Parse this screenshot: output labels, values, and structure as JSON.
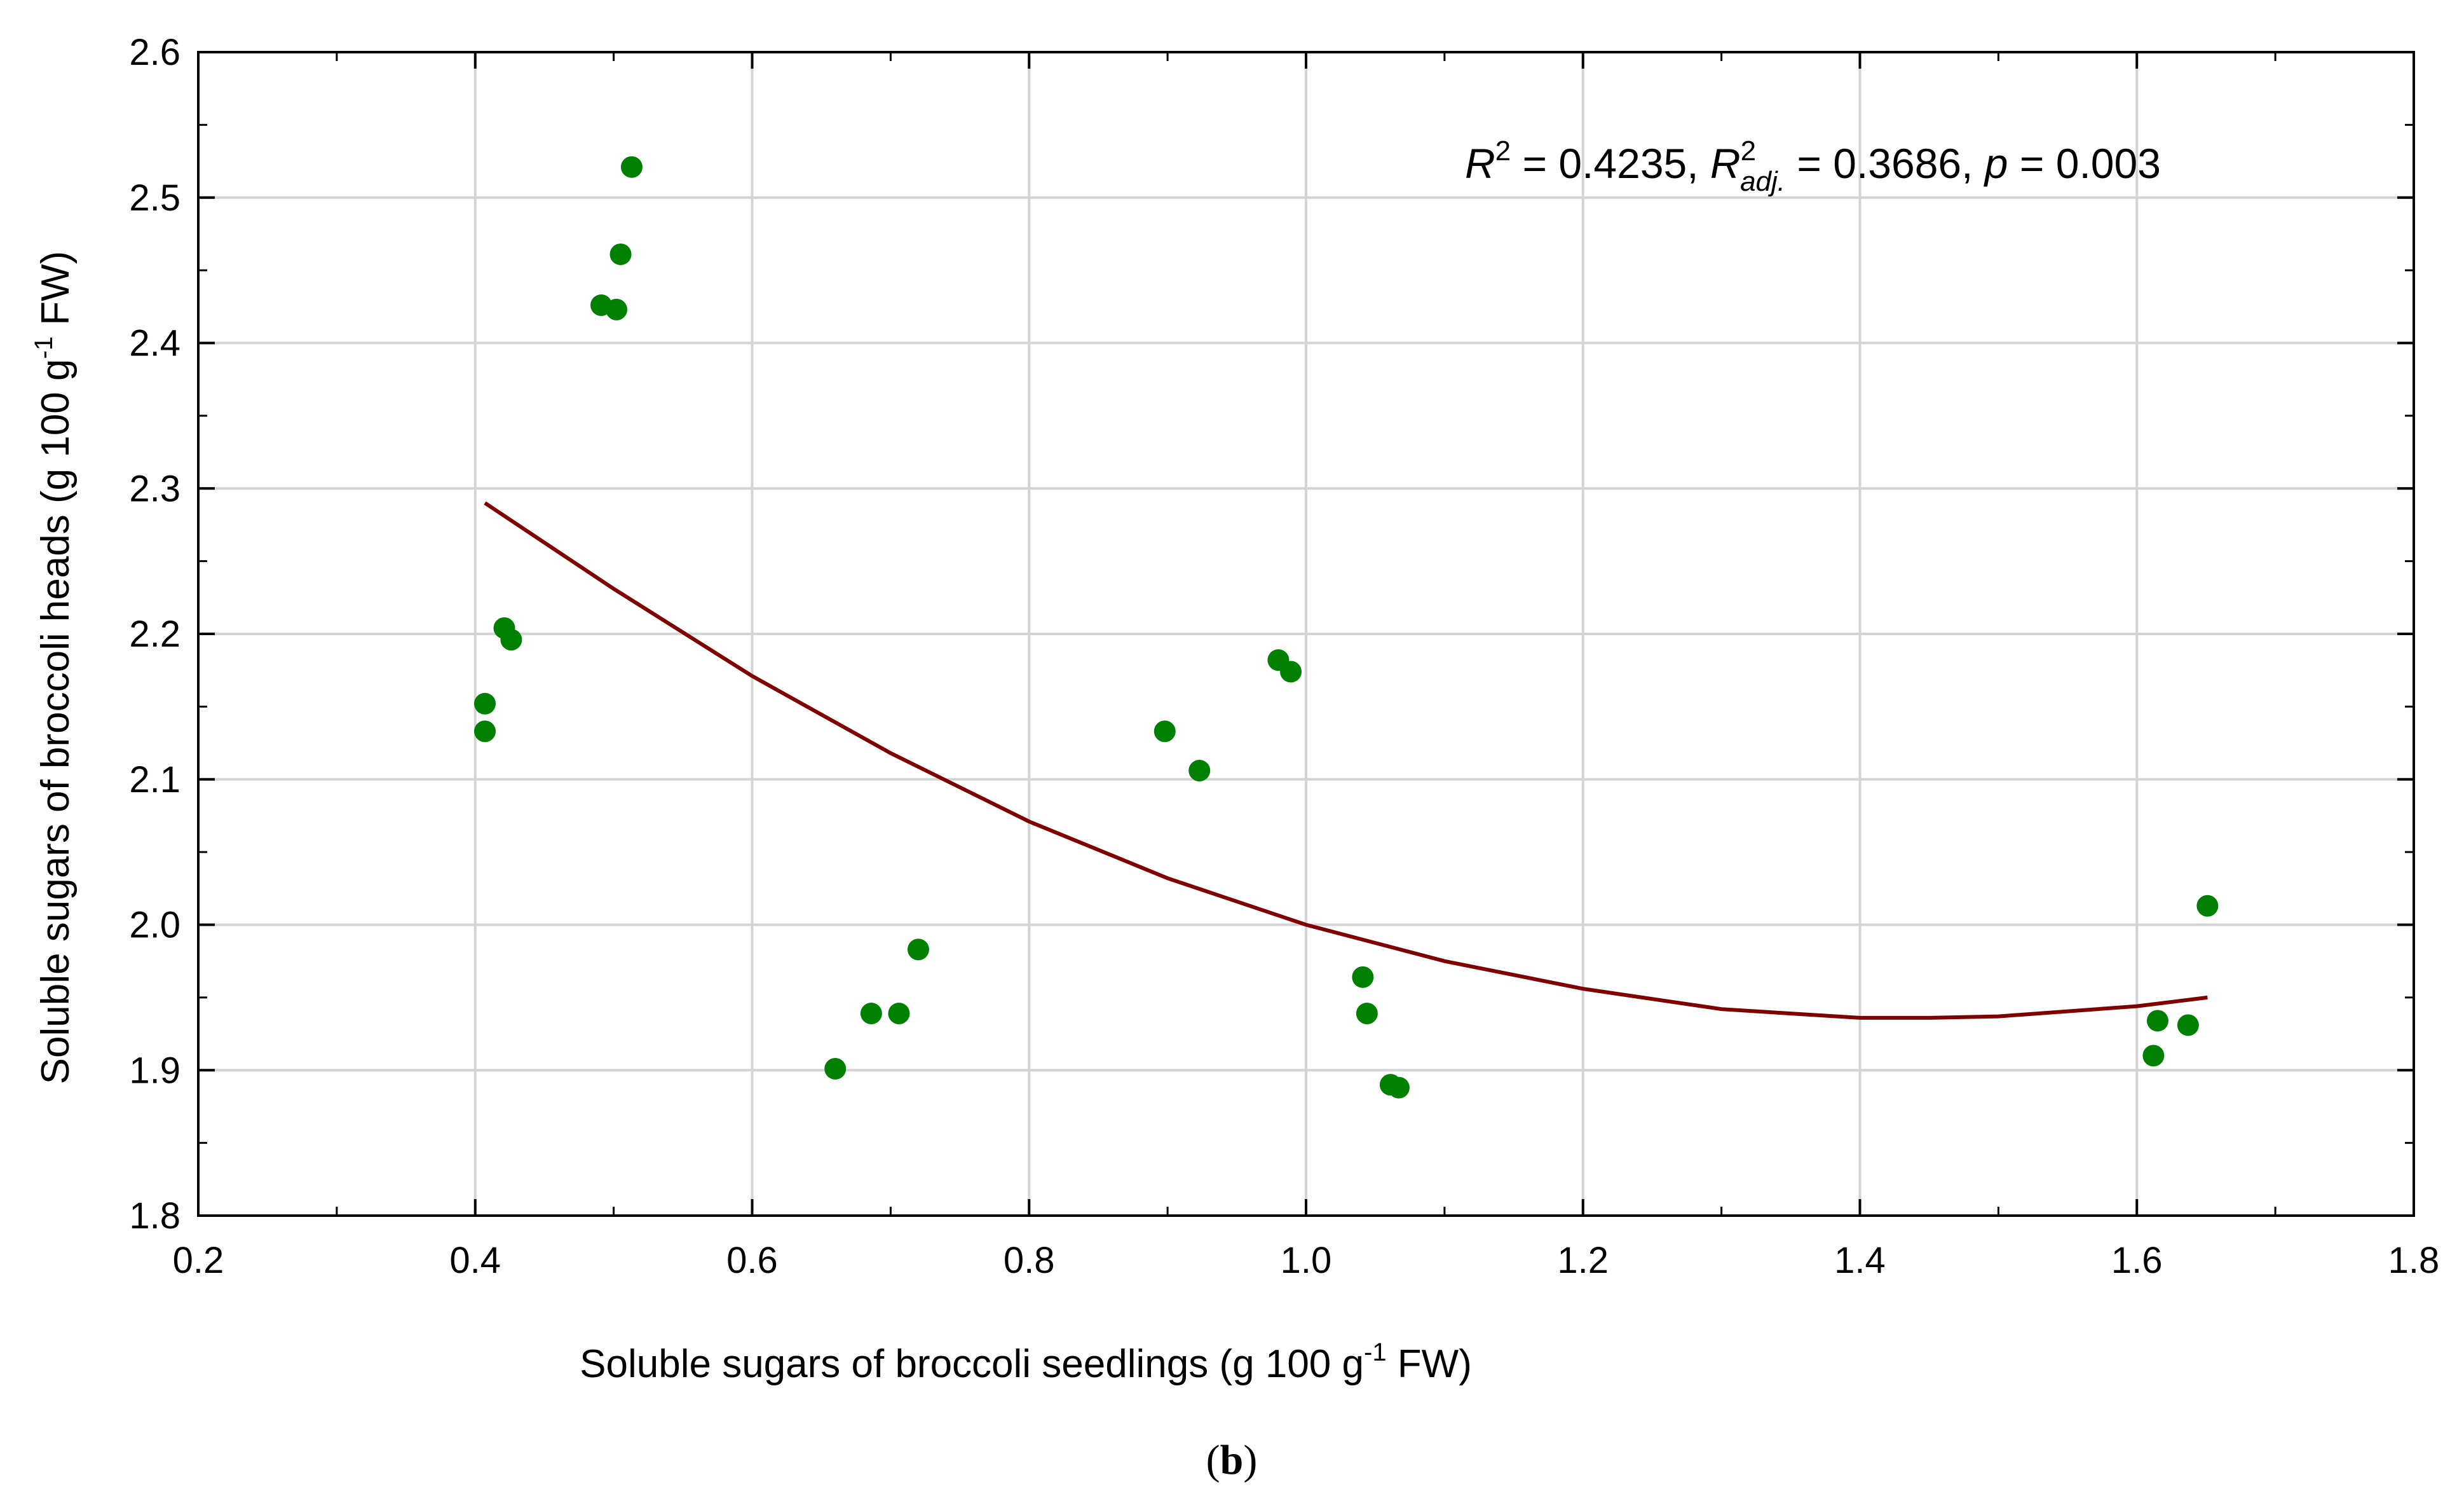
{
  "chart_data": {
    "type": "scatter",
    "xlabel": "Soluble sugars of broccoli seedlings (g 100 g⁻¹ FW)",
    "xlabel_parts": {
      "pre": "Soluble sugars of broccoli seedlings (g 100 g",
      "sup": "-1",
      "post": " FW)"
    },
    "ylabel": "Soluble sugars of broccoli heads (g 100 g⁻¹ FW)",
    "ylabel_parts": {
      "pre": "Soluble sugars of broccoli heads (g 100 g",
      "sup": "-1",
      "post": " FW)"
    },
    "xlim": [
      0.2,
      1.8
    ],
    "ylim": [
      1.8,
      2.6
    ],
    "x_ticks": [
      0.2,
      0.4,
      0.6,
      0.8,
      1.0,
      1.2,
      1.4,
      1.6,
      1.8
    ],
    "x_tick_labels": [
      "0.2",
      "0.4",
      "0.6",
      "0.8",
      "1.0",
      "1.2",
      "1.4",
      "1.6",
      "1.8"
    ],
    "y_ticks": [
      1.8,
      1.9,
      2.0,
      2.1,
      2.2,
      2.3,
      2.4,
      2.5,
      2.6
    ],
    "y_tick_labels": [
      "1.8",
      "1.9",
      "2.0",
      "2.1",
      "2.2",
      "2.3",
      "2.4",
      "2.5",
      "2.6"
    ],
    "grid": true,
    "point_color": "#008000",
    "line_color": "#800000",
    "points": [
      {
        "x": 0.407,
        "y": 2.152
      },
      {
        "x": 0.407,
        "y": 2.133
      },
      {
        "x": 0.421,
        "y": 2.204
      },
      {
        "x": 0.426,
        "y": 2.196
      },
      {
        "x": 0.491,
        "y": 2.426
      },
      {
        "x": 0.502,
        "y": 2.423
      },
      {
        "x": 0.505,
        "y": 2.461
      },
      {
        "x": 0.513,
        "y": 2.521
      },
      {
        "x": 0.66,
        "y": 1.901
      },
      {
        "x": 0.686,
        "y": 1.939
      },
      {
        "x": 0.706,
        "y": 1.939
      },
      {
        "x": 0.72,
        "y": 1.983
      },
      {
        "x": 0.898,
        "y": 2.133
      },
      {
        "x": 0.923,
        "y": 2.106
      },
      {
        "x": 0.98,
        "y": 2.182
      },
      {
        "x": 0.989,
        "y": 2.174
      },
      {
        "x": 1.041,
        "y": 1.964
      },
      {
        "x": 1.044,
        "y": 1.939
      },
      {
        "x": 1.061,
        "y": 1.89
      },
      {
        "x": 1.067,
        "y": 1.888
      },
      {
        "x": 1.612,
        "y": 1.91
      },
      {
        "x": 1.615,
        "y": 1.934
      },
      {
        "x": 1.637,
        "y": 1.931
      },
      {
        "x": 1.651,
        "y": 2.013
      }
    ],
    "fit_curve": {
      "type": "quadratic",
      "x_range": [
        0.407,
        1.651
      ],
      "samples": [
        {
          "x": 0.407,
          "y": 2.29
        },
        {
          "x": 0.5,
          "y": 2.231
        },
        {
          "x": 0.6,
          "y": 2.171
        },
        {
          "x": 0.7,
          "y": 2.118
        },
        {
          "x": 0.8,
          "y": 2.071
        },
        {
          "x": 0.9,
          "y": 2.032
        },
        {
          "x": 1.0,
          "y": 2.0
        },
        {
          "x": 1.1,
          "y": 1.975
        },
        {
          "x": 1.2,
          "y": 1.956
        },
        {
          "x": 1.3,
          "y": 1.942
        },
        {
          "x": 1.4,
          "y": 1.936
        },
        {
          "x": 1.45,
          "y": 1.936
        },
        {
          "x": 1.5,
          "y": 1.937
        },
        {
          "x": 1.6,
          "y": 1.944
        },
        {
          "x": 1.651,
          "y": 1.95
        }
      ]
    },
    "annotation": {
      "r2_label": "R",
      "r2_sup": "2",
      "r2_value": " = 0.4235, ",
      "r2adj_label": "R",
      "r2adj_sup": "2",
      "r2adj_sub": "adj.",
      "r2adj_value": " = 0.3686, ",
      "p_label": "p",
      "p_value": " = 0.003"
    }
  },
  "caption": {
    "open": "(",
    "letter": "b",
    "close": ")"
  }
}
